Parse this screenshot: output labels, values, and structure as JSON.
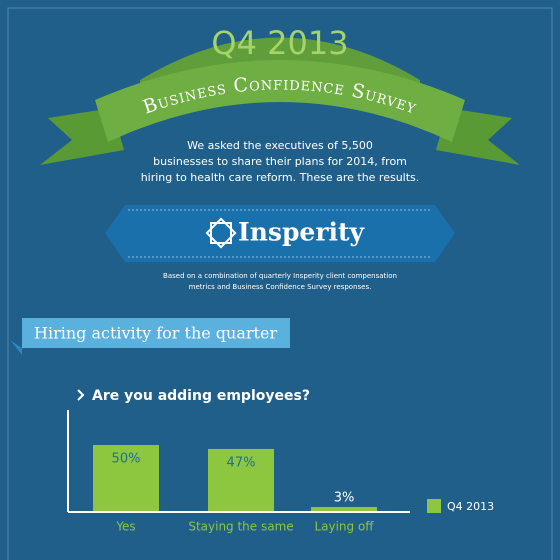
{
  "header": {
    "quarter": "Q4 2013",
    "title": "Business Confidence Survey",
    "intro": [
      "We asked the executives of 5,500",
      "businesses to share their plans for 2014, from",
      "hiring to health care reform. These are the results."
    ],
    "brand": "Insperity",
    "note": [
      "Based on a combination of quarterly Insperity client compensation",
      "metrics and Business Confidence Survey responses."
    ]
  },
  "section": {
    "title": "Hiring activity for the quarter"
  },
  "chart_data": {
    "type": "bar",
    "title": "Are you adding employees?",
    "categories": [
      "Yes",
      "Staying the same",
      "Laying off"
    ],
    "series": [
      {
        "name": "Q4 2013",
        "color": "#8dc63f",
        "values": [
          50,
          47,
          3
        ],
        "value_labels": [
          "50%",
          "47%",
          "3%"
        ]
      }
    ],
    "legend": "right"
  }
}
